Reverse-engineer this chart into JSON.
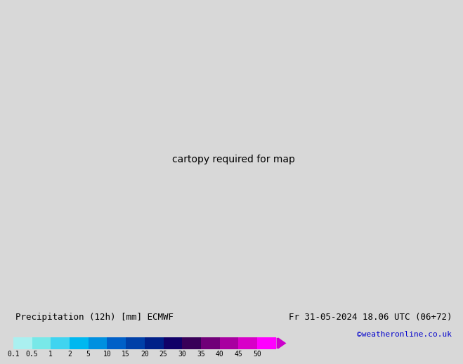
{
  "title_left": "Precipitation (12h) [mm] ECMWF",
  "title_right": "Fr 31-05-2024 18.06 UTC (06+72)",
  "credit": "©weatheronline.co.uk",
  "colorbar_values": [
    0.1,
    0.5,
    1,
    2,
    5,
    10,
    15,
    20,
    25,
    30,
    35,
    40,
    45,
    50
  ],
  "colorbar_labels": [
    "0.1",
    "0.5",
    "1",
    "2",
    "5",
    "10",
    "15",
    "20",
    "25",
    "30",
    "35",
    "40",
    "45",
    "50"
  ],
  "colorbar_colors": [
    "#aaf0f0",
    "#78e8e8",
    "#40d4f0",
    "#00b8f0",
    "#0090e0",
    "#0060c8",
    "#0040a8",
    "#002088",
    "#100068",
    "#380058",
    "#700078",
    "#a800a0",
    "#d800c8",
    "#ff00ff"
  ],
  "land_color": "#c8d8a0",
  "sea_color": "#d0eaf8",
  "bg_color": "#d8d8d8",
  "bottom_bg": "#d8d8d8",
  "text_color": "#000000",
  "credit_color": "#0000cc",
  "isobar_red": "#cc0000",
  "isobar_blue": "#0000bb",
  "font_size_title": 9,
  "font_size_tick": 7,
  "font_size_credit": 8,
  "font_size_isobar": 6.5,
  "map_extent": [
    -25,
    45,
    30,
    75
  ]
}
